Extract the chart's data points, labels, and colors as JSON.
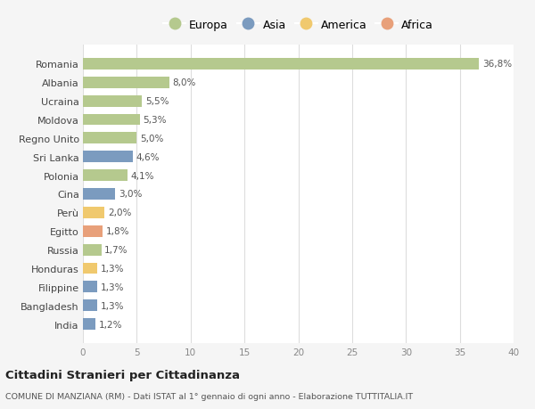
{
  "countries": [
    "Romania",
    "Albania",
    "Ucraina",
    "Moldova",
    "Regno Unito",
    "Sri Lanka",
    "Polonia",
    "Cina",
    "Perù",
    "Egitto",
    "Russia",
    "Honduras",
    "Filippine",
    "Bangladesh",
    "India"
  ],
  "values": [
    36.8,
    8.0,
    5.5,
    5.3,
    5.0,
    4.6,
    4.1,
    3.0,
    2.0,
    1.8,
    1.7,
    1.3,
    1.3,
    1.3,
    1.2
  ],
  "continents": [
    "Europa",
    "Europa",
    "Europa",
    "Europa",
    "Europa",
    "Asia",
    "Europa",
    "Asia",
    "America",
    "Africa",
    "Europa",
    "America",
    "Asia",
    "Asia",
    "Asia"
  ],
  "colors": {
    "Europa": "#b5c98e",
    "Asia": "#7b9bbf",
    "America": "#f0c96e",
    "Africa": "#e8a07a"
  },
  "legend_order": [
    "Europa",
    "Asia",
    "America",
    "Africa"
  ],
  "title": "Cittadini Stranieri per Cittadinanza",
  "subtitle": "COMUNE DI MANZIANA (RM) - Dati ISTAT al 1° gennaio di ogni anno - Elaborazione TUTTITALIA.IT",
  "xlim": [
    0,
    40
  ],
  "xticks": [
    0,
    5,
    10,
    15,
    20,
    25,
    30,
    35,
    40
  ],
  "background_color": "#f5f5f5",
  "bar_background": "#ffffff",
  "grid_color": "#dddddd"
}
